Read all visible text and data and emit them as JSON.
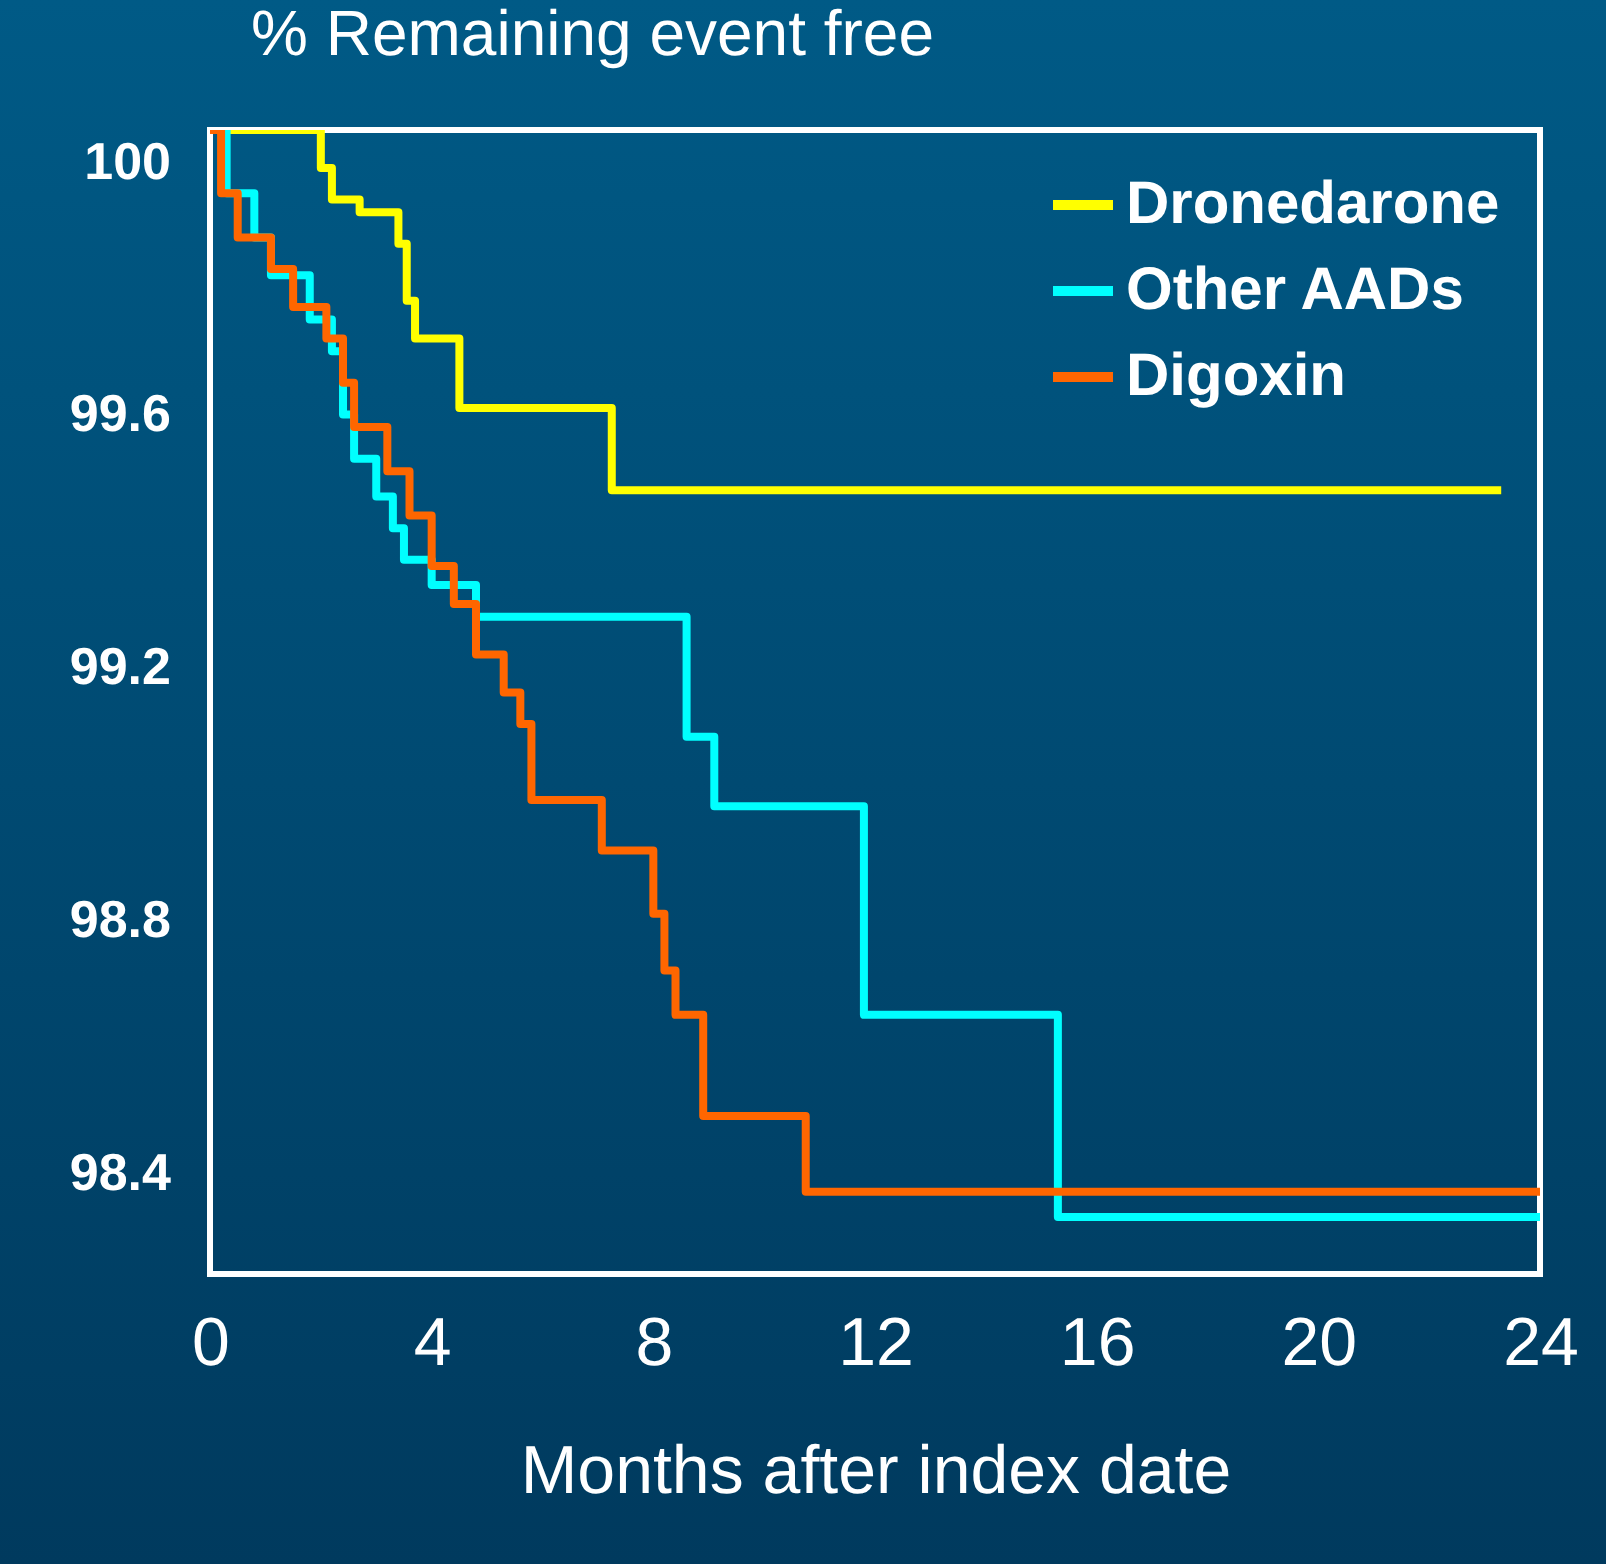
{
  "chart_data": {
    "type": "step",
    "ylabel": "% Remaining event free",
    "xlabel": "Months after index date",
    "xlim": [
      0,
      24
    ],
    "ylim": [
      98.24,
      100.05
    ],
    "xticks": [
      0,
      4,
      8,
      12,
      16,
      20,
      24
    ],
    "yticks": [
      98.4,
      98.8,
      99.2,
      99.6,
      100
    ],
    "grid": false,
    "legend": "top right",
    "line_style": "solid",
    "marker": "none",
    "series": [
      {
        "name": "Dronedarone",
        "color": "#ffff00",
        "x": [
          0,
          2.0,
          2.2,
          2.7,
          3.4,
          3.55,
          3.7,
          4.5,
          7.25,
          23.3
        ],
        "values": [
          100.05,
          99.99,
          99.94,
          99.92,
          99.87,
          99.78,
          99.72,
          99.61,
          99.48,
          99.48
        ]
      },
      {
        "name": "Other AADs",
        "color": "#00ffff",
        "x": [
          0,
          0.3,
          0.8,
          1.1,
          1.8,
          2.2,
          2.4,
          2.6,
          3.0,
          3.3,
          3.5,
          4.0,
          4.8,
          8.6,
          9.1,
          11.8,
          15.3,
          24
        ],
        "values": [
          100.05,
          99.95,
          99.88,
          99.82,
          99.75,
          99.7,
          99.6,
          99.53,
          99.47,
          99.42,
          99.37,
          99.33,
          99.28,
          99.09,
          98.98,
          98.65,
          98.33,
          98.33
        ]
      },
      {
        "name": "Digoxin",
        "color": "#ff6600",
        "x": [
          0,
          0.2,
          0.5,
          1.1,
          1.5,
          2.1,
          2.4,
          2.6,
          3.2,
          3.6,
          4.0,
          4.4,
          4.8,
          5.3,
          5.6,
          5.8,
          7.07,
          8.0,
          8.2,
          8.4,
          8.9,
          10.75,
          24
        ],
        "values": [
          100.05,
          99.95,
          99.88,
          99.83,
          99.77,
          99.72,
          99.65,
          99.58,
          99.51,
          99.44,
          99.36,
          99.3,
          99.22,
          99.16,
          99.11,
          98.99,
          98.91,
          98.81,
          98.72,
          98.65,
          98.49,
          98.37,
          98.37
        ]
      }
    ]
  }
}
